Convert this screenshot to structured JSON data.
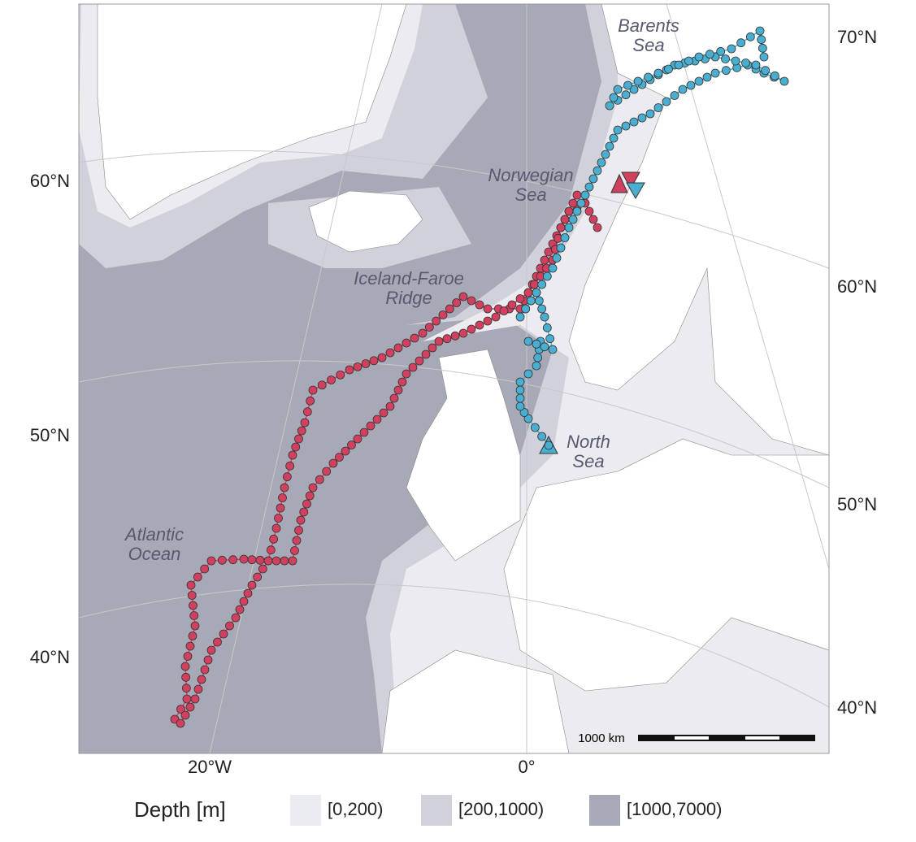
{
  "map": {
    "lat_labels_left": [
      "60°N",
      "50°N",
      "40°N"
    ],
    "lat_labels_right": [
      "70°N",
      "60°N",
      "50°N",
      "40°N"
    ],
    "lon_labels": [
      "20°W",
      "0°"
    ],
    "places": [
      {
        "lines": [
          "Barents",
          "Sea"
        ]
      },
      {
        "lines": [
          "Norwegian",
          "Sea"
        ]
      },
      {
        "lines": [
          "Iceland-Faroe",
          "Ridge"
        ]
      },
      {
        "lines": [
          "North",
          "Sea"
        ]
      },
      {
        "lines": [
          "Atlantic",
          "Ocean"
        ]
      }
    ],
    "scale_bar": "1000 km",
    "legend": {
      "title": "Depth [m]",
      "items": [
        "[0,200)",
        "[200,1000)",
        "[1000,7000)"
      ]
    }
  }
}
